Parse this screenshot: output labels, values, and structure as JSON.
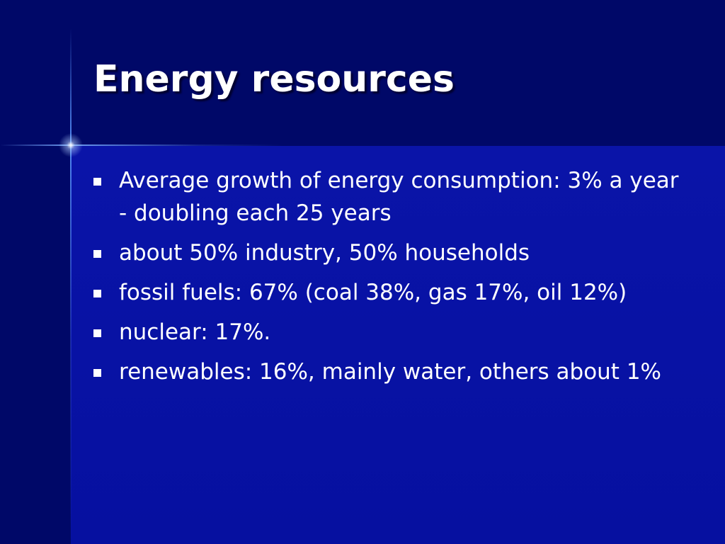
{
  "title": "Energy resources",
  "bullets": [
    "Average growth of energy consumption: 3% a year - doubling each 25 years",
    "about 50% industry, 50% households",
    "fossil fuels: 67% (coal 38%, gas 17%, oil 12%)",
    "nuclear: 17%.",
    "renewables: 16%, mainly water, others about 1%"
  ]
}
